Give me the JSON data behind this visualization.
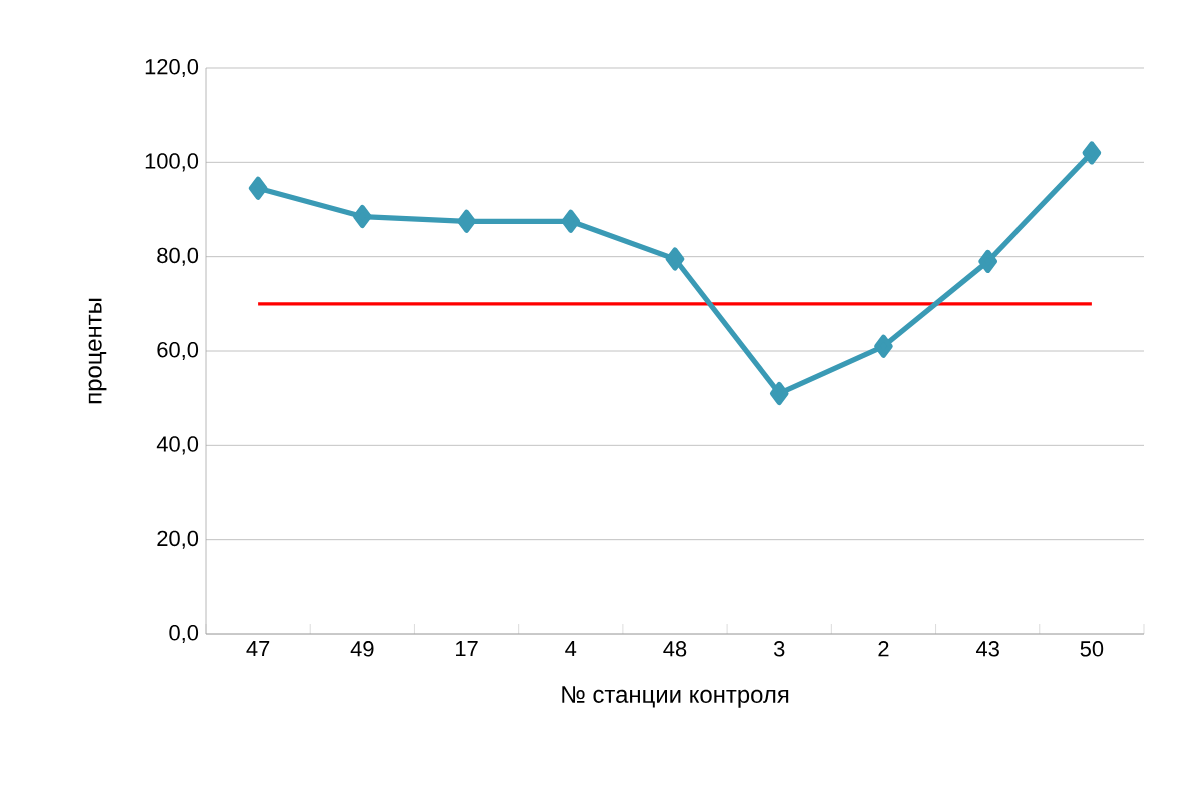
{
  "chart_data": {
    "type": "line",
    "xlabel": "№ станции контроля",
    "ylabel": "проценты",
    "categories": [
      "47",
      "49",
      "17",
      "4",
      "48",
      "3",
      "2",
      "43",
      "50"
    ],
    "series": [
      {
        "color": "#3a9ab5",
        "values": [
          94.5,
          88.5,
          87.5,
          87.5,
          79.5,
          51,
          61,
          79,
          102
        ]
      }
    ],
    "ylim": [
      0,
      120
    ],
    "yticks": [
      {
        "value": 0,
        "label": "0,0"
      },
      {
        "value": 20,
        "label": "20,0"
      },
      {
        "value": 40,
        "label": "40,0"
      },
      {
        "value": 60,
        "label": "60,0"
      },
      {
        "value": 80,
        "label": "80,0"
      },
      {
        "value": 100,
        "label": "100,0"
      },
      {
        "value": 120,
        "label": "120,0"
      }
    ],
    "grid": "y",
    "marker": "diamond",
    "line_style": "solid",
    "ref_lines": [
      {
        "axis": "y",
        "value": 70,
        "color": "#ff0000"
      }
    ]
  }
}
